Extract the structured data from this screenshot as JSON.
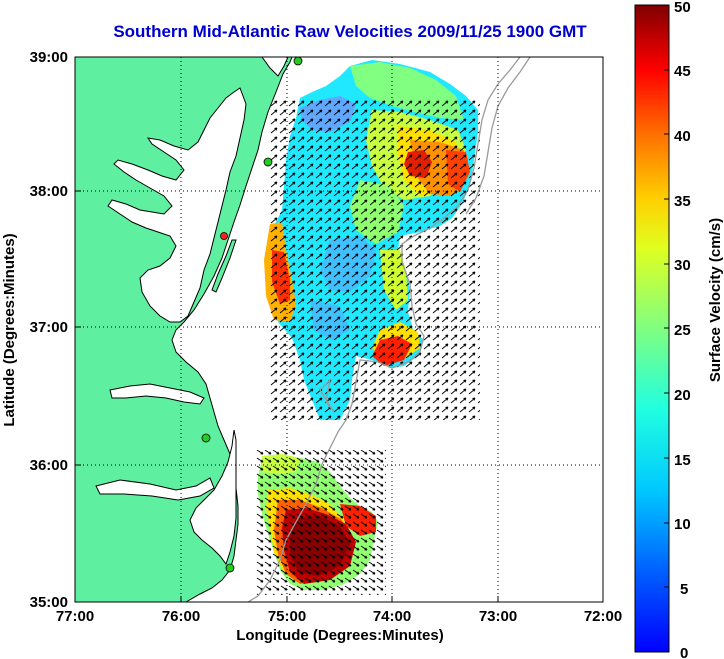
{
  "title": "Southern Mid-Atlantic Raw Velocities 2009/11/25 1900 GMT",
  "x_axis": {
    "label": "Longitude (Degrees:Minutes)",
    "ticks": [
      "77:00",
      "76:00",
      "75:00",
      "74:00",
      "73:00",
      "72:00"
    ]
  },
  "y_axis": {
    "label": "Latitude (Degrees:Minutes)",
    "ticks": [
      "39:00",
      "38:00",
      "37:00",
      "36:00",
      "35:00"
    ]
  },
  "colorbar": {
    "label": "Surface Velocity (cm/s)",
    "ticks": [
      "50",
      "45",
      "40",
      "35",
      "30",
      "25",
      "20",
      "15",
      "10",
      "5",
      "0"
    ],
    "min": 0,
    "max": 50,
    "colormap": "jet"
  },
  "chart_data": {
    "type": "heatmap",
    "title": "Southern Mid-Atlantic Raw Velocities 2009/11/25 1900 GMT",
    "xlabel": "Longitude (Degrees:Minutes)",
    "ylabel": "Latitude (Degrees:Minutes)",
    "xlim": [
      -77,
      -72
    ],
    "ylim": [
      35,
      39
    ],
    "grid": true,
    "colors": {
      "land": "#5ef0a0",
      "coast": "#000000",
      "bathymetry": "#9a9a9a",
      "station": "#22cc22",
      "arrows": "#000000"
    }
  }
}
